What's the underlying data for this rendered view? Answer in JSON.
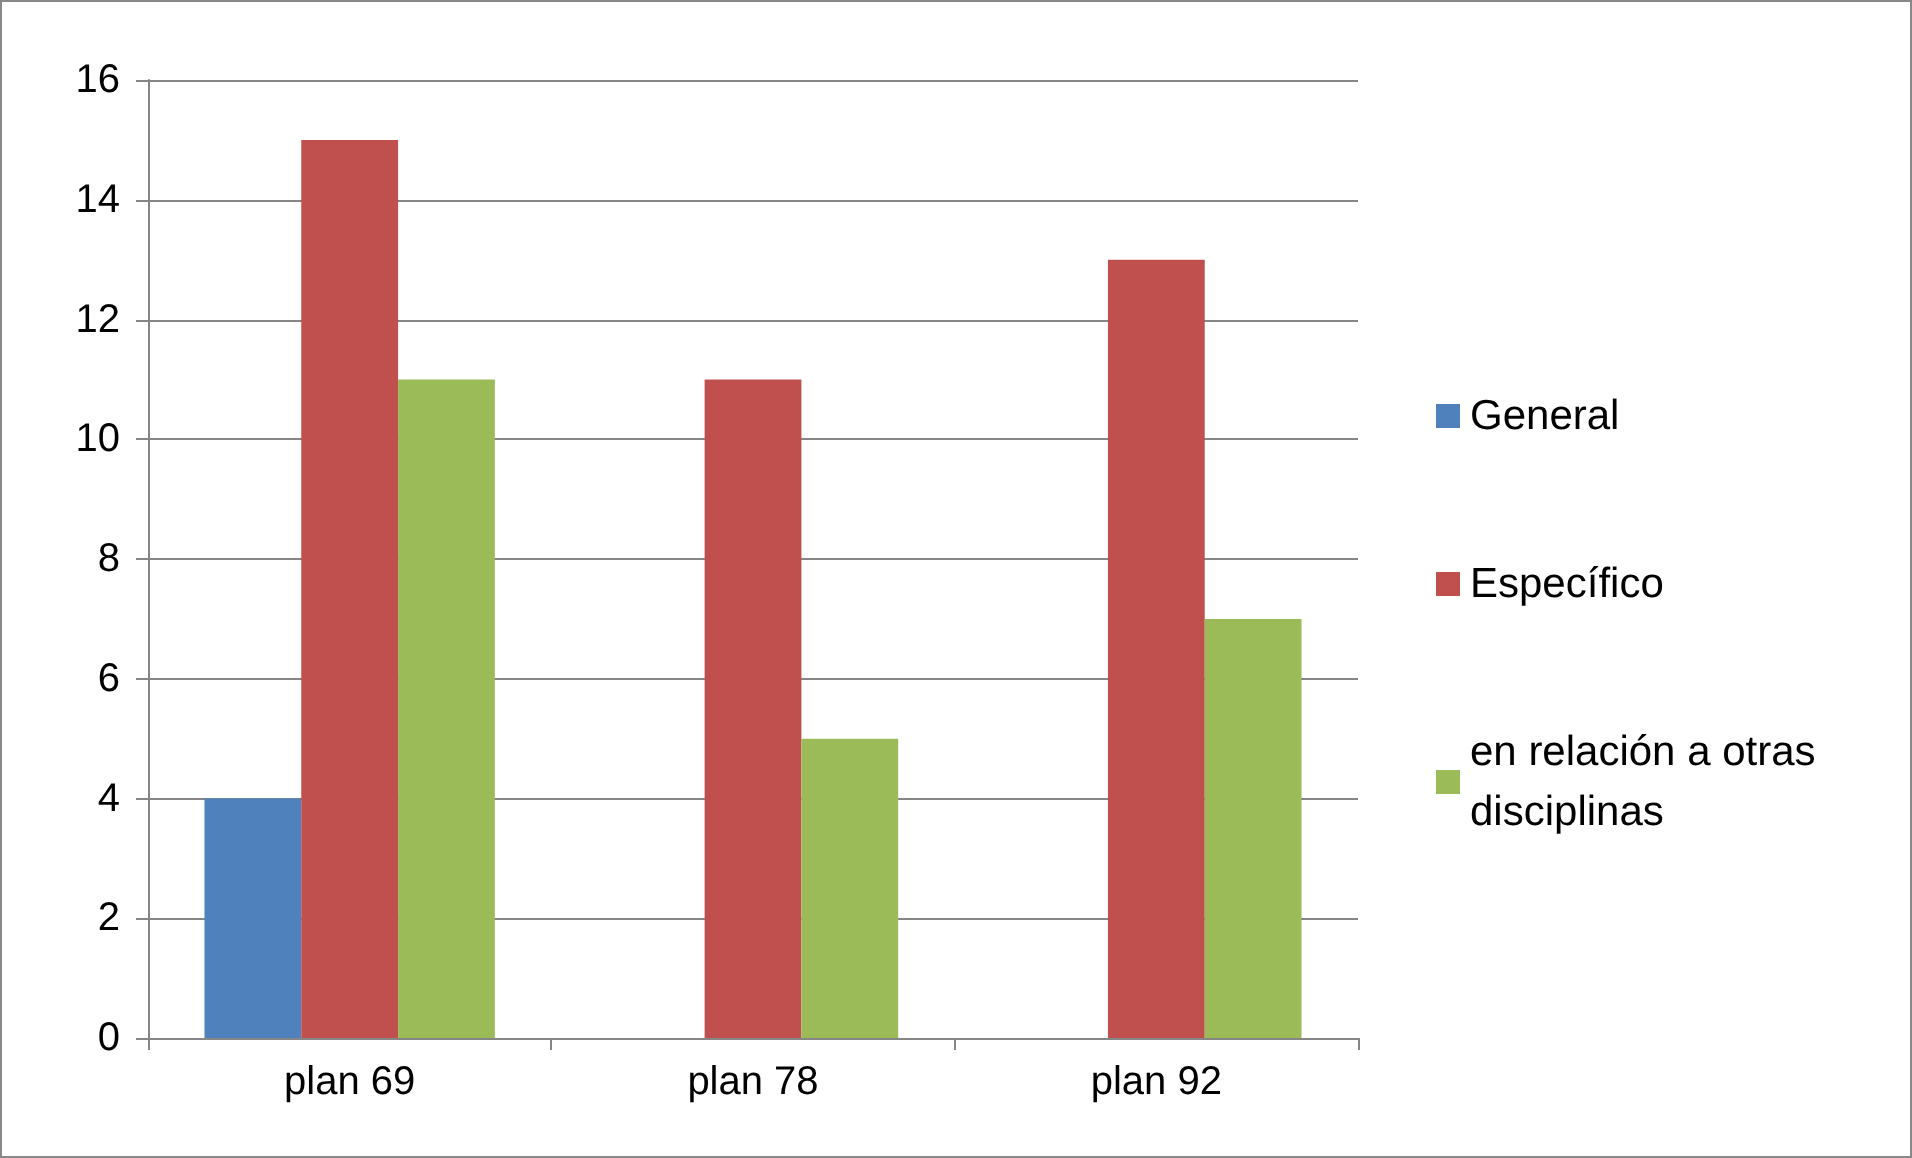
{
  "chart_data": {
    "type": "bar",
    "categories": [
      "plan 69",
      "plan 78",
      "plan 92"
    ],
    "series": [
      {
        "name": "General",
        "color": "#4f81bd",
        "values": [
          4,
          0,
          0
        ]
      },
      {
        "name": "Específico",
        "color": "#c0504d",
        "values": [
          15,
          11,
          13
        ]
      },
      {
        "name": "en relación a otras disciplinas",
        "color": "#9bbb59",
        "values": [
          11,
          5,
          7
        ]
      }
    ],
    "ylim": [
      0,
      16
    ],
    "yticks": [
      0,
      2,
      4,
      6,
      8,
      10,
      12,
      14,
      16
    ],
    "grid": "y",
    "legend": "right"
  }
}
